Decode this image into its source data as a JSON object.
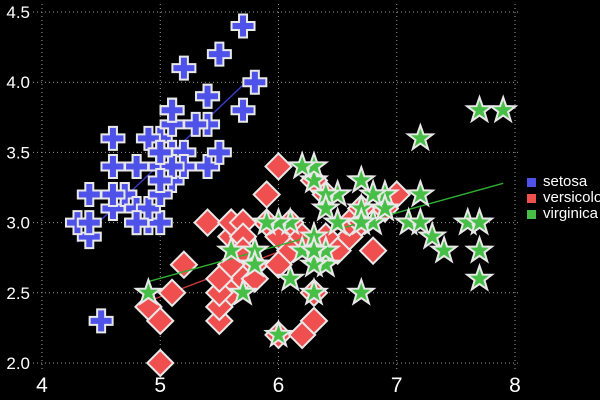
{
  "colors": {
    "background": "#000000",
    "grid": "#9a9a9a",
    "tick_text": "#ffffff",
    "marker_outline": "#e8e8e8"
  },
  "chart_data": {
    "type": "scatter",
    "title": "",
    "xlabel": "",
    "ylabel": "",
    "xlim": [
      4,
      8
    ],
    "ylim": [
      2.0,
      4.5
    ],
    "grid": "dotted",
    "legend_position": "right-outside",
    "x_ticks": [
      4,
      5,
      6,
      7,
      8
    ],
    "x_tick_labels": [
      "4",
      "5",
      "6",
      "7",
      "8"
    ],
    "y_ticks": [
      2.0,
      2.5,
      3.0,
      3.5,
      4.0,
      4.5
    ],
    "y_tick_labels": [
      "2.0",
      "2.5",
      "3.0",
      "3.5",
      "4.0",
      "4.5"
    ],
    "series": [
      {
        "name": "setosa",
        "marker": "plus",
        "color": "#4f52e8",
        "trend_color": "#3a3acc",
        "trend": [
          [
            4.3,
            2.86
          ],
          [
            5.8,
            4.06
          ]
        ],
        "points": [
          [
            5.1,
            3.5
          ],
          [
            4.9,
            3.0
          ],
          [
            4.7,
            3.2
          ],
          [
            4.6,
            3.1
          ],
          [
            5.0,
            3.6
          ],
          [
            5.4,
            3.9
          ],
          [
            4.6,
            3.4
          ],
          [
            5.0,
            3.4
          ],
          [
            4.4,
            2.9
          ],
          [
            4.9,
            3.1
          ],
          [
            5.4,
            3.7
          ],
          [
            4.8,
            3.4
          ],
          [
            4.8,
            3.0
          ],
          [
            4.3,
            3.0
          ],
          [
            5.8,
            4.0
          ],
          [
            5.7,
            4.4
          ],
          [
            5.4,
            3.9
          ],
          [
            5.1,
            3.5
          ],
          [
            5.7,
            3.8
          ],
          [
            5.1,
            3.8
          ],
          [
            5.4,
            3.4
          ],
          [
            5.1,
            3.7
          ],
          [
            4.6,
            3.6
          ],
          [
            5.1,
            3.3
          ],
          [
            4.8,
            3.4
          ],
          [
            5.0,
            3.0
          ],
          [
            5.0,
            3.4
          ],
          [
            5.2,
            3.5
          ],
          [
            5.2,
            3.4
          ],
          [
            4.7,
            3.2
          ],
          [
            4.8,
            3.1
          ],
          [
            5.4,
            3.4
          ],
          [
            5.2,
            4.1
          ],
          [
            5.5,
            4.2
          ],
          [
            4.9,
            3.1
          ],
          [
            5.0,
            3.2
          ],
          [
            5.5,
            3.5
          ],
          [
            4.9,
            3.6
          ],
          [
            4.4,
            3.0
          ],
          [
            5.1,
            3.4
          ],
          [
            5.0,
            3.5
          ],
          [
            4.5,
            2.3
          ],
          [
            4.4,
            3.2
          ],
          [
            5.0,
            3.5
          ],
          [
            5.1,
            3.8
          ],
          [
            4.8,
            3.0
          ],
          [
            5.1,
            3.8
          ],
          [
            4.6,
            3.2
          ],
          [
            5.3,
            3.7
          ],
          [
            5.0,
            3.3
          ]
        ]
      },
      {
        "name": "versicolor",
        "marker": "diamond",
        "color": "#f04f4f",
        "trend_color": "#cc3a3a",
        "trend": [
          [
            4.9,
            2.44
          ],
          [
            7.0,
            3.11
          ]
        ],
        "points": [
          [
            7.0,
            3.2
          ],
          [
            6.4,
            3.2
          ],
          [
            6.9,
            3.1
          ],
          [
            5.5,
            2.3
          ],
          [
            6.5,
            2.8
          ],
          [
            5.7,
            2.8
          ],
          [
            6.3,
            3.3
          ],
          [
            4.9,
            2.4
          ],
          [
            6.6,
            2.9
          ],
          [
            5.2,
            2.7
          ],
          [
            5.0,
            2.0
          ],
          [
            5.9,
            3.0
          ],
          [
            6.0,
            2.2
          ],
          [
            6.1,
            2.9
          ],
          [
            5.6,
            2.9
          ],
          [
            6.7,
            3.1
          ],
          [
            5.6,
            3.0
          ],
          [
            5.8,
            2.7
          ],
          [
            6.2,
            2.2
          ],
          [
            5.6,
            2.5
          ],
          [
            5.9,
            3.2
          ],
          [
            6.1,
            2.8
          ],
          [
            6.3,
            2.5
          ],
          [
            6.1,
            2.8
          ],
          [
            6.4,
            2.9
          ],
          [
            6.6,
            3.0
          ],
          [
            6.8,
            2.8
          ],
          [
            6.7,
            3.0
          ],
          [
            6.0,
            2.9
          ],
          [
            5.7,
            2.6
          ],
          [
            5.5,
            2.4
          ],
          [
            5.5,
            2.4
          ],
          [
            5.8,
            2.7
          ],
          [
            6.0,
            2.7
          ],
          [
            5.4,
            3.0
          ],
          [
            6.0,
            3.4
          ],
          [
            6.7,
            3.1
          ],
          [
            6.3,
            2.3
          ],
          [
            5.6,
            3.0
          ],
          [
            5.5,
            2.5
          ],
          [
            5.5,
            2.6
          ],
          [
            6.1,
            3.0
          ],
          [
            5.8,
            2.6
          ],
          [
            5.0,
            2.3
          ],
          [
            5.6,
            2.7
          ],
          [
            5.7,
            3.0
          ],
          [
            5.7,
            2.9
          ],
          [
            6.2,
            2.9
          ],
          [
            5.1,
            2.5
          ],
          [
            5.7,
            2.8
          ]
        ]
      },
      {
        "name": "virginica",
        "marker": "star",
        "color": "#47bf47",
        "trend_color": "#2fae2f",
        "trend": [
          [
            4.9,
            2.58
          ],
          [
            7.9,
            3.28
          ]
        ],
        "points": [
          [
            6.3,
            3.3
          ],
          [
            5.8,
            2.7
          ],
          [
            7.1,
            3.0
          ],
          [
            6.3,
            2.9
          ],
          [
            6.5,
            3.0
          ],
          [
            7.6,
            3.0
          ],
          [
            4.9,
            2.5
          ],
          [
            7.3,
            2.9
          ],
          [
            6.7,
            2.5
          ],
          [
            7.2,
            3.6
          ],
          [
            6.5,
            3.2
          ],
          [
            6.4,
            2.7
          ],
          [
            6.8,
            3.0
          ],
          [
            5.7,
            2.5
          ],
          [
            5.8,
            2.8
          ],
          [
            6.4,
            3.2
          ],
          [
            6.5,
            3.0
          ],
          [
            7.7,
            3.8
          ],
          [
            7.7,
            2.6
          ],
          [
            6.0,
            2.2
          ],
          [
            6.9,
            3.2
          ],
          [
            5.6,
            2.8
          ],
          [
            7.7,
            2.8
          ],
          [
            6.3,
            2.7
          ],
          [
            6.7,
            3.3
          ],
          [
            7.2,
            3.2
          ],
          [
            6.2,
            2.8
          ],
          [
            6.1,
            3.0
          ],
          [
            6.4,
            2.8
          ],
          [
            7.2,
            3.0
          ],
          [
            7.4,
            2.8
          ],
          [
            7.9,
            3.8
          ],
          [
            6.4,
            2.8
          ],
          [
            6.3,
            2.8
          ],
          [
            6.1,
            2.6
          ],
          [
            7.7,
            3.0
          ],
          [
            6.3,
            3.4
          ],
          [
            6.4,
            3.1
          ],
          [
            6.0,
            3.0
          ],
          [
            6.9,
            3.1
          ],
          [
            6.7,
            3.1
          ],
          [
            6.9,
            3.1
          ],
          [
            5.8,
            2.7
          ],
          [
            6.8,
            3.2
          ],
          [
            6.7,
            3.3
          ],
          [
            6.7,
            3.0
          ],
          [
            6.3,
            2.5
          ],
          [
            6.5,
            3.0
          ],
          [
            6.2,
            3.4
          ],
          [
            5.9,
            3.0
          ]
        ]
      }
    ]
  }
}
